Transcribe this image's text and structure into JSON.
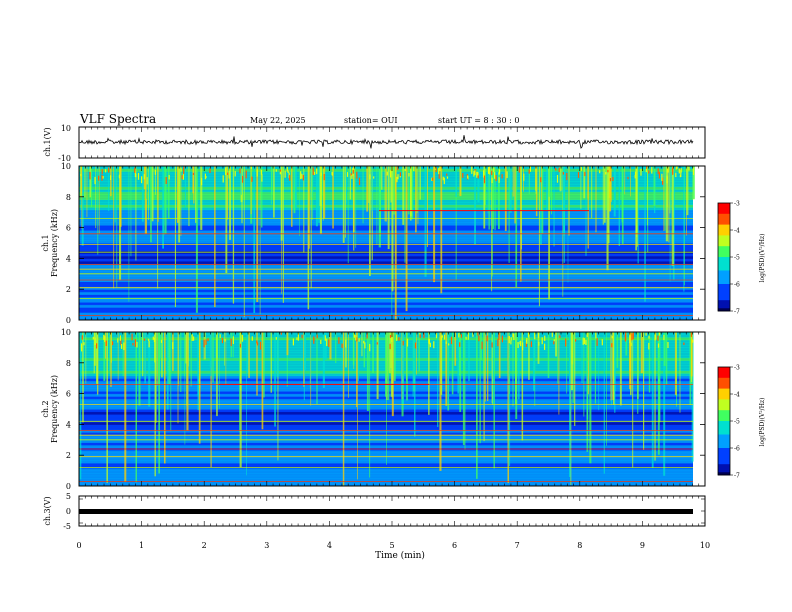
{
  "header": {
    "title": "VLF Spectra",
    "date": "May 22, 2025",
    "station": "station= OUI",
    "start_ut": "start  UT =  8 : 30 : 0"
  },
  "colors": {
    "spectrogram_base": "#1030c8",
    "trace": "#000000",
    "colormap": [
      "#000060",
      "#0000c0",
      "#0050ff",
      "#00c8ff",
      "#40ff80",
      "#c8ff00",
      "#ff8000",
      "#ff0000",
      "#ffffff"
    ]
  },
  "chart_data": [
    {
      "type": "line",
      "id": "ch1-waveform",
      "ylabel": "ch.1(V)",
      "ylim": [
        -10,
        10
      ],
      "yticks": [
        "10",
        "-10"
      ],
      "xlim": [
        0,
        10
      ],
      "level": 0,
      "description_values": {
        "baseline": -0.2,
        "noise_amplitude": 1.0
      }
    },
    {
      "type": "heatmap",
      "id": "ch1-spectrogram",
      "ylabel": "ch.1",
      "ylabel2": "Frequency  (kHz)",
      "ylim": [
        0,
        10
      ],
      "yticks": [
        "10",
        "8",
        "6",
        "4",
        "2",
        "0"
      ],
      "xlim": [
        0,
        9.83
      ],
      "narrowband_lines_khz": [
        0.3,
        1.4,
        2.1,
        2.6,
        3.0,
        3.3,
        3.6,
        4.4,
        4.9,
        5.6,
        6.6
      ],
      "colorbar": {
        "label": "log(PSD)(V²/Hz)",
        "range": [
          -7,
          -3
        ],
        "ticks": [
          "-3",
          "-4",
          "-5",
          "-6",
          "-7"
        ]
      }
    },
    {
      "type": "heatmap",
      "id": "ch2-spectrogram",
      "ylabel": "ch.2",
      "ylabel2": "Frequency  (kHz)",
      "ylim": [
        0,
        10
      ],
      "yticks": [
        "10",
        "8",
        "6",
        "4",
        "2",
        "0"
      ],
      "xlim": [
        0,
        9.83
      ],
      "narrowband_lines_khz": [
        0.3,
        1.2,
        1.9,
        2.4,
        3.0,
        3.3,
        3.6,
        4.2,
        5.3,
        6.6
      ],
      "colorbar": {
        "label": "log(PSD)(V²/Hz)",
        "range": [
          -7,
          -3
        ],
        "ticks": [
          "-3",
          "-4",
          "-5",
          "-6",
          "-7"
        ]
      }
    },
    {
      "type": "line",
      "id": "ch3-waveform",
      "ylabel": "ch.3(V)",
      "ylim": [
        -5,
        5
      ],
      "yticks": [
        "5",
        "0",
        "-5"
      ],
      "xlim": [
        0,
        9.83
      ],
      "level": -1.8
    }
  ],
  "xaxis": {
    "label": "Time  (min)",
    "ticks": [
      "0",
      "1",
      "2",
      "3",
      "4",
      "5",
      "6",
      "7",
      "8",
      "9",
      "10"
    ],
    "xlim": [
      0,
      10
    ]
  }
}
